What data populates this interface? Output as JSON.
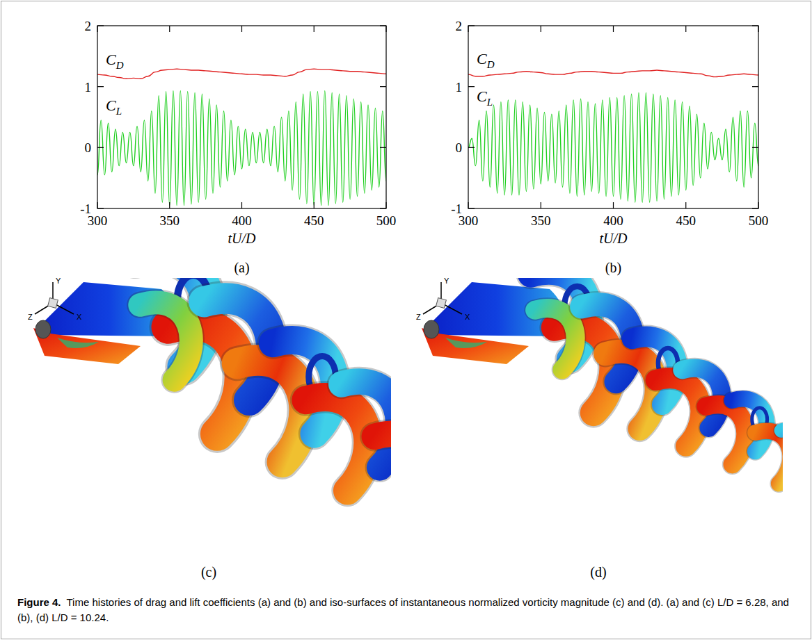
{
  "chart_data": [
    {
      "type": "line",
      "xlabel": "tU/D",
      "xlim": [
        300,
        500
      ],
      "xticks": [
        300,
        350,
        400,
        450,
        500
      ],
      "ylim": [
        -1,
        2
      ],
      "yticks": [
        -1,
        0,
        1,
        2
      ],
      "series": [
        {
          "name": "CD",
          "color": "#e02020",
          "x": [
            300,
            305,
            310,
            315,
            320,
            325,
            330,
            335,
            340,
            345,
            350,
            355,
            360,
            365,
            370,
            375,
            380,
            385,
            390,
            395,
            400,
            405,
            410,
            415,
            420,
            425,
            430,
            435,
            440,
            445,
            450,
            455,
            460,
            465,
            470,
            475,
            480,
            485,
            490,
            495,
            500
          ],
          "values": [
            1.2,
            1.19,
            1.17,
            1.15,
            1.13,
            1.14,
            1.13,
            1.17,
            1.24,
            1.27,
            1.28,
            1.29,
            1.28,
            1.27,
            1.27,
            1.26,
            1.25,
            1.24,
            1.23,
            1.22,
            1.21,
            1.2,
            1.2,
            1.19,
            1.19,
            1.18,
            1.17,
            1.19,
            1.24,
            1.28,
            1.29,
            1.28,
            1.28,
            1.27,
            1.26,
            1.25,
            1.25,
            1.24,
            1.23,
            1.22,
            1.21
          ]
        },
        {
          "name": "CL",
          "color": "#1fcf1f",
          "x": [
            300,
            302.5,
            305,
            307.5,
            310,
            312.5,
            315,
            317.5,
            320,
            322.5,
            325,
            327.5,
            330,
            332.5,
            335,
            337.5,
            340,
            342.5,
            345,
            347.5,
            350,
            352.5,
            355,
            357.5,
            360,
            362.5,
            365,
            367.5,
            370,
            372.5,
            375,
            377.5,
            380,
            382.5,
            385,
            387.5,
            390,
            392.5,
            395,
            397.5,
            400,
            402.5,
            405,
            407.5,
            410,
            412.5,
            415,
            417.5,
            420,
            422.5,
            425,
            427.5,
            430,
            432.5,
            435,
            437.5,
            440,
            442.5,
            445,
            447.5,
            450,
            452.5,
            455,
            457.5,
            460,
            462.5,
            465,
            467.5,
            470,
            472.5,
            475,
            477.5,
            480,
            482.5,
            485,
            487.5,
            490,
            492.5,
            495,
            497.5,
            500
          ],
          "values": [
            -0.45,
            0.45,
            -0.45,
            0.4,
            -0.4,
            0.3,
            -0.3,
            0.25,
            -0.25,
            0.25,
            -0.3,
            0.35,
            -0.4,
            0.45,
            -0.55,
            0.6,
            -0.75,
            0.85,
            -0.9,
            0.92,
            -0.95,
            0.93,
            -0.95,
            0.93,
            -0.95,
            0.92,
            -0.93,
            0.9,
            -0.9,
            0.88,
            -0.85,
            0.8,
            -0.75,
            0.7,
            -0.65,
            0.6,
            -0.55,
            0.45,
            -0.45,
            0.35,
            -0.35,
            0.3,
            -0.3,
            0.25,
            -0.25,
            0.25,
            -0.25,
            0.3,
            -0.3,
            0.35,
            -0.4,
            0.5,
            -0.55,
            0.6,
            -0.7,
            0.75,
            -0.85,
            0.88,
            -0.92,
            0.92,
            -0.95,
            0.92,
            -0.95,
            0.93,
            -0.95,
            0.9,
            -0.92,
            0.88,
            -0.9,
            0.85,
            -0.85,
            0.8,
            -0.8,
            0.75,
            -0.75,
            0.7,
            -0.7,
            0.65,
            -0.65,
            0.6,
            -0.55
          ]
        }
      ]
    },
    {
      "type": "line",
      "xlabel": "tU/D",
      "xlim": [
        300,
        500
      ],
      "xticks": [
        300,
        350,
        400,
        450,
        500
      ],
      "ylim": [
        -1,
        2
      ],
      "yticks": [
        -1,
        0,
        1,
        2
      ],
      "series": [
        {
          "name": "CD",
          "color": "#e02020",
          "x": [
            300,
            305,
            310,
            315,
            320,
            325,
            330,
            335,
            340,
            345,
            350,
            355,
            360,
            365,
            370,
            375,
            380,
            385,
            390,
            395,
            400,
            405,
            410,
            415,
            420,
            425,
            430,
            435,
            440,
            445,
            450,
            455,
            460,
            465,
            470,
            475,
            480,
            485,
            490,
            495,
            500
          ],
          "values": [
            1.2,
            1.17,
            1.17,
            1.19,
            1.2,
            1.21,
            1.22,
            1.24,
            1.25,
            1.24,
            1.23,
            1.21,
            1.2,
            1.2,
            1.22,
            1.24,
            1.25,
            1.25,
            1.24,
            1.23,
            1.22,
            1.22,
            1.24,
            1.25,
            1.26,
            1.26,
            1.27,
            1.26,
            1.25,
            1.24,
            1.23,
            1.22,
            1.21,
            1.18,
            1.16,
            1.17,
            1.19,
            1.2,
            1.21,
            1.2,
            1.19
          ]
        },
        {
          "name": "CL",
          "color": "#1fcf1f",
          "x": [
            300,
            302.5,
            305,
            307.5,
            310,
            312.5,
            315,
            317.5,
            320,
            322.5,
            325,
            327.5,
            330,
            332.5,
            335,
            337.5,
            340,
            342.5,
            345,
            347.5,
            350,
            352.5,
            355,
            357.5,
            360,
            362.5,
            365,
            367.5,
            370,
            372.5,
            375,
            377.5,
            380,
            382.5,
            385,
            387.5,
            390,
            392.5,
            395,
            397.5,
            400,
            402.5,
            405,
            407.5,
            410,
            412.5,
            415,
            417.5,
            420,
            422.5,
            425,
            427.5,
            430,
            432.5,
            435,
            437.5,
            440,
            442.5,
            445,
            447.5,
            450,
            452.5,
            455,
            457.5,
            460,
            462.5,
            465,
            467.5,
            470,
            472.5,
            475,
            477.5,
            480,
            482.5,
            485,
            487.5,
            490,
            492.5,
            495,
            497.5,
            500
          ],
          "values": [
            0,
            0.15,
            -0.3,
            0.45,
            -0.55,
            0.6,
            -0.65,
            0.7,
            -0.75,
            0.75,
            -0.78,
            0.78,
            -0.78,
            0.78,
            -0.78,
            0.75,
            -0.72,
            0.7,
            -0.68,
            0.65,
            -0.6,
            0.58,
            -0.55,
            0.55,
            -0.58,
            0.6,
            -0.65,
            0.7,
            -0.75,
            0.78,
            -0.8,
            0.8,
            -0.78,
            0.75,
            -0.72,
            0.72,
            -0.75,
            0.78,
            -0.8,
            0.82,
            -0.8,
            0.82,
            -0.85,
            0.85,
            -0.88,
            0.88,
            -0.9,
            0.9,
            -0.9,
            0.9,
            -0.9,
            0.88,
            -0.88,
            0.85,
            -0.85,
            0.82,
            -0.8,
            0.78,
            -0.78,
            0.75,
            -0.7,
            0.68,
            -0.62,
            0.55,
            -0.5,
            0.4,
            -0.35,
            0.25,
            -0.2,
            0.15,
            -0.2,
            0.3,
            -0.4,
            0.5,
            -0.55,
            0.6,
            -0.65,
            0.6,
            -0.5,
            0.4,
            -0.3
          ]
        }
      ]
    }
  ],
  "panels": [
    "(a)",
    "(b)",
    "(c)",
    "(d)"
  ],
  "renderings": [
    {
      "axis_labels": {
        "y": "Y",
        "z": "Z",
        "x": "X"
      }
    },
    {
      "axis_labels": {
        "y": "Y",
        "z": "Z",
        "x": "X"
      }
    }
  ],
  "caption": {
    "label": "Figure 4.",
    "text": "Time histories of drag and lift coefficients (a) and (b) and iso-surfaces of instantaneous normalized vorticity magnitude (c) and (d). (a) and (c) L/D = 6.28, and (b), (d) L/D = 10.24."
  }
}
